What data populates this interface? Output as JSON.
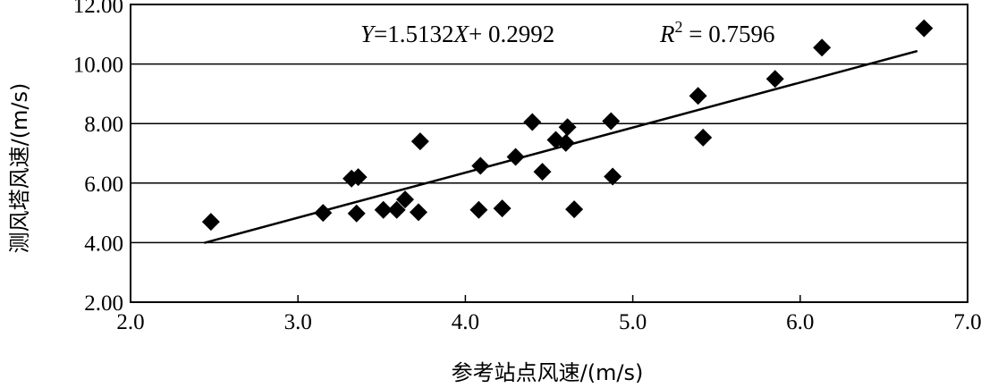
{
  "chart_data": {
    "type": "scatter",
    "xlabel": "参考站点风速/(m/s)",
    "ylabel": "测风塔风速/(m/s)",
    "xlim": [
      2.0,
      7.0
    ],
    "ylim": [
      2.0,
      12.0
    ],
    "x_ticks": [
      "2.0",
      "3.0",
      "4.0",
      "5.0",
      "6.0",
      "7.0"
    ],
    "y_ticks": [
      "2.00",
      "4.00",
      "6.00",
      "8.00",
      "10.00",
      "12.00"
    ],
    "grid": "horizontal",
    "marker": "diamond",
    "colors": {
      "marker": "#000000",
      "line": "#000000",
      "grid": "#000000"
    },
    "points": [
      {
        "x": 2.48,
        "y": 4.7
      },
      {
        "x": 3.15,
        "y": 5.0
      },
      {
        "x": 3.32,
        "y": 6.15
      },
      {
        "x": 3.36,
        "y": 6.2
      },
      {
        "x": 3.35,
        "y": 4.98
      },
      {
        "x": 3.51,
        "y": 5.1
      },
      {
        "x": 3.59,
        "y": 5.1
      },
      {
        "x": 3.64,
        "y": 5.45
      },
      {
        "x": 3.72,
        "y": 5.02
      },
      {
        "x": 3.73,
        "y": 7.4
      },
      {
        "x": 4.08,
        "y": 5.1
      },
      {
        "x": 4.09,
        "y": 6.58
      },
      {
        "x": 4.22,
        "y": 5.15
      },
      {
        "x": 4.3,
        "y": 6.88
      },
      {
        "x": 4.4,
        "y": 8.05
      },
      {
        "x": 4.46,
        "y": 6.38
      },
      {
        "x": 4.54,
        "y": 7.45
      },
      {
        "x": 4.6,
        "y": 7.35
      },
      {
        "x": 4.61,
        "y": 7.88
      },
      {
        "x": 4.65,
        "y": 5.12
      },
      {
        "x": 4.87,
        "y": 8.08
      },
      {
        "x": 4.88,
        "y": 6.22
      },
      {
        "x": 5.39,
        "y": 8.93
      },
      {
        "x": 5.42,
        "y": 7.53
      },
      {
        "x": 5.85,
        "y": 9.5
      },
      {
        "x": 6.13,
        "y": 10.55
      },
      {
        "x": 6.74,
        "y": 11.2
      }
    ],
    "trendline": {
      "slope": 1.5132,
      "intercept": 0.2992,
      "x_range": [
        2.44,
        6.7
      ]
    },
    "annotations": {
      "equation": {
        "prefix": "Y",
        "eq": "=1.5132",
        "var": "X",
        "rest": "+ 0.2992"
      },
      "r_squared": {
        "label": "R",
        "exponent": "2",
        "rest": " = 0.7596"
      }
    }
  }
}
